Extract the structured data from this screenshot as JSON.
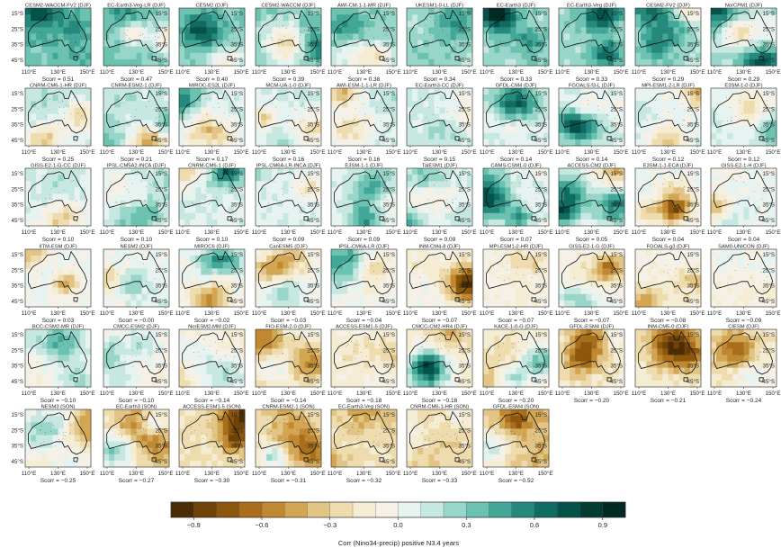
{
  "chart_data": {
    "type": "heatmap",
    "title": "",
    "colorbar": {
      "label": "Corr (Nino34-precip) positive N3.4 years",
      "ticks": [
        "−0.9",
        "−0.6",
        "−0.3",
        "0.0",
        "0.3",
        "0.6",
        "0.9"
      ],
      "range": [
        -1.0,
        1.0
      ],
      "colors": [
        "#4a2d07",
        "#6e4208",
        "#8c570d",
        "#a86e1b",
        "#c08830",
        "#d2a653",
        "#e2c484",
        "#eedcae",
        "#f5ecd4",
        "#f6f1e6",
        "#e6f3f0",
        "#c6e8e0",
        "#98d6c9",
        "#6cc2b1",
        "#43a797",
        "#26897d",
        "#0f6c63",
        "#04534b",
        "#023c33",
        "#012a22"
      ]
    },
    "x_ticks": [
      "110°E",
      "130°E",
      "150°E"
    ],
    "y_ticks": [
      "15°S",
      "25°S",
      "35°S",
      "45°S"
    ],
    "score_prefix": "Scorr = ",
    "panels": [
      {
        "label": "CESM2-WACCM-FV2 (DJF)",
        "score": "0.51",
        "value": 0.51
      },
      {
        "label": "EC-Earth3-Veg-LR (DJF)",
        "score": "0.47",
        "value": 0.47
      },
      {
        "label": "CESM2 (DJF)",
        "score": "0.40",
        "value": 0.4
      },
      {
        "label": "CESM2-WACCM (DJF)",
        "score": "0.39",
        "value": 0.39
      },
      {
        "label": "AWI-CM-1-1-MR (DJF)",
        "score": "0.38",
        "value": 0.38
      },
      {
        "label": "UKESM1-0-LL (DJF)",
        "score": "0.34",
        "value": 0.34
      },
      {
        "label": "EC-Earth3 (DJF)",
        "score": "0.33",
        "value": 0.33
      },
      {
        "label": "EC-Earth3-Veg (DJF)",
        "score": "0.33",
        "value": 0.33
      },
      {
        "label": "CESM2-FV2 (DJF)",
        "score": "0.29",
        "value": 0.29
      },
      {
        "label": "NorCPM1 (DJF)",
        "score": "0.29",
        "value": 0.29
      },
      {
        "label": "CNRM-CM6-1-HR (DJF)",
        "score": "0.25",
        "value": 0.25
      },
      {
        "label": "CNRM-ESM2-1 (DJF)",
        "score": "0.21",
        "value": 0.21
      },
      {
        "label": "MIROC-ES2L (DJF)",
        "score": "0.17",
        "value": 0.17
      },
      {
        "label": "MCM-UA-1-0 (DJF)",
        "score": "0.16",
        "value": 0.16
      },
      {
        "label": "AWI-ESM-1-1-LR (DJF)",
        "score": "0.16",
        "value": 0.16
      },
      {
        "label": "EC-Earth3-CC (DJF)",
        "score": "0.15",
        "value": 0.15
      },
      {
        "label": "GFDL-CM4 (DJF)",
        "score": "0.14",
        "value": 0.14
      },
      {
        "label": "FGOALS-f3-L (DJF)",
        "score": "0.14",
        "value": 0.14
      },
      {
        "label": "MPI-ESM1-2-LR (DJF)",
        "score": "0.12",
        "value": 0.12
      },
      {
        "label": "E3SM-1-0 (DJF)",
        "score": "0.12",
        "value": 0.12
      },
      {
        "label": "GISS-E2-1-G-CC (DJF)",
        "score": "0.10",
        "value": 0.1
      },
      {
        "label": "IPSL-CM5A2-INCA (DJF)",
        "score": "0.10",
        "value": 0.1
      },
      {
        "label": "CNRM-CM6-1 (DJF)",
        "score": "0.10",
        "value": 0.1
      },
      {
        "label": "IPSL-CM6A-LR-INCA (DJF)",
        "score": "0.09",
        "value": 0.09
      },
      {
        "label": "E3SM-1-1 (DJF)",
        "score": "0.09",
        "value": 0.09
      },
      {
        "label": "TaiESM1 (DJF)",
        "score": "0.09",
        "value": 0.09
      },
      {
        "label": "CAMS-CSM1-0 (DJF)",
        "score": "0.07",
        "value": 0.07
      },
      {
        "label": "ACCESS-CM2 (DJF)",
        "score": "0.05",
        "value": 0.05
      },
      {
        "label": "E3SM-1-1-ECA (DJF)",
        "score": "0.04",
        "value": 0.04
      },
      {
        "label": "GISS-E2-1-H (DJF)",
        "score": "0.04",
        "value": 0.04
      },
      {
        "label": "IITM-ESM (DJF)",
        "score": "0.03",
        "value": 0.03
      },
      {
        "label": "NESM2 (DJF)",
        "score": "−0.00",
        "value": -0.0
      },
      {
        "label": "MIROC6 (DJF)",
        "score": "−0.02",
        "value": -0.02
      },
      {
        "label": "CanESM5 (DJF)",
        "score": "−0.03",
        "value": -0.03
      },
      {
        "label": "IPSL-CM6A-LR (DJF)",
        "score": "−0.04",
        "value": -0.04
      },
      {
        "label": "INM-CM4-8 (DJF)",
        "score": "−0.07",
        "value": -0.07
      },
      {
        "label": "MPI-ESM1-2-HR (DJF)",
        "score": "−0.07",
        "value": -0.07
      },
      {
        "label": "GISS-E2-1-G (DJF)",
        "score": "−0.07",
        "value": -0.07
      },
      {
        "label": "FGOALS-g3 (DJF)",
        "score": "−0.08",
        "value": -0.08
      },
      {
        "label": "SAM0-UNICON (DJF)",
        "score": "−0.09",
        "value": -0.09
      },
      {
        "label": "BCC-CSM2-MR (DJF)",
        "score": "−0.10",
        "value": -0.1
      },
      {
        "label": "CMCC-ESM2 (DJF)",
        "score": "−0.10",
        "value": -0.1
      },
      {
        "label": "NorESM2-MM (DJF)",
        "score": "−0.14",
        "value": -0.14
      },
      {
        "label": "FIO-ESM-2-0 (DJF)",
        "score": "−0.14",
        "value": -0.14
      },
      {
        "label": "ACCESS-ESM1-5 (DJF)",
        "score": "−0.18",
        "value": -0.18
      },
      {
        "label": "CMCC-CM2-HR4 (DJF)",
        "score": "−0.18",
        "value": -0.18
      },
      {
        "label": "KACE-1-0-G (DJF)",
        "score": "−0.20",
        "value": -0.2
      },
      {
        "label": "GFDL-ESM4 (DJF)",
        "score": "−0.20",
        "value": -0.2
      },
      {
        "label": "INM-CM5-0 (DJF)",
        "score": "−0.21",
        "value": -0.21
      },
      {
        "label": "CIESM (DJF)",
        "score": "−0.24",
        "value": -0.24
      },
      {
        "label": "NESM3 (SON)",
        "score": "−0.25",
        "value": -0.25
      },
      {
        "label": "EC-Earth3 (SON)",
        "score": "−0.27",
        "value": -0.27
      },
      {
        "label": "ACCESS-ESM1-5 (SON)",
        "score": "−0.30",
        "value": -0.3
      },
      {
        "label": "CNRM-ESM2-1 (SON)",
        "score": "−0.31",
        "value": -0.31
      },
      {
        "label": "EC-Earth3-Veg (SON)",
        "score": "−0.32",
        "value": -0.32
      },
      {
        "label": "CNRM-CM6-1-HR (SON)",
        "score": "−0.33",
        "value": -0.33
      },
      {
        "label": "GFDL-ESM4 (SON)",
        "score": "−0.52",
        "value": -0.52
      }
    ]
  }
}
